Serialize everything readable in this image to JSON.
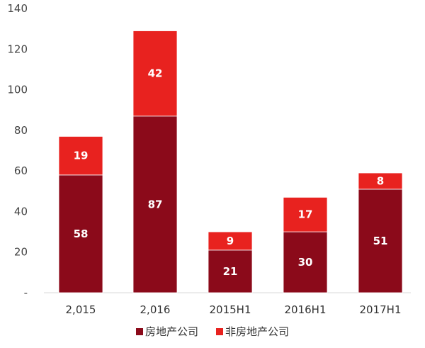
{
  "chart_data": {
    "type": "bar",
    "stacked": true,
    "categories": [
      "2,015",
      "2,016",
      "2015H1",
      "2016H1",
      "2017H1"
    ],
    "series": [
      {
        "name": "房地产公司",
        "values": [
          58,
          87,
          21,
          30,
          51
        ],
        "color": "#8b0a1a"
      },
      {
        "name": "非房地产公司",
        "values": [
          19,
          42,
          9,
          17,
          8
        ],
        "color": "#e8221f"
      }
    ],
    "ylim": [
      0,
      140
    ],
    "yticks": [
      "-",
      "20",
      "40",
      "60",
      "80",
      "100",
      "120",
      "140"
    ],
    "grid": false,
    "legend": "bottom",
    "data_labels": true
  }
}
